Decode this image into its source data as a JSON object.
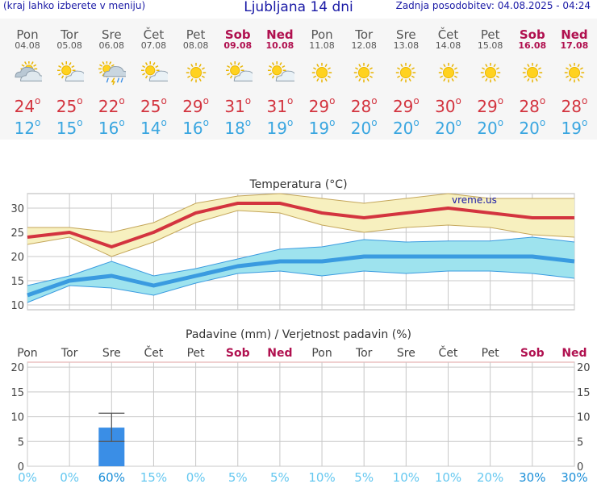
{
  "header": {
    "left": "(kraj lahko izberete v meniju)",
    "title": "Ljubljana 14 dni",
    "right": "Zadnja posodobitev: 04.08.2025 - 04:24"
  },
  "days": [
    {
      "name": "Pon",
      "date": "04.08",
      "weekend": false,
      "icon": "cloudy-sun-icon",
      "tmax": "24",
      "tmin": "12"
    },
    {
      "name": "Tor",
      "date": "05.08",
      "weekend": false,
      "icon": "partly-cloudy-icon",
      "tmax": "25",
      "tmin": "15"
    },
    {
      "name": "Sre",
      "date": "06.08",
      "weekend": false,
      "icon": "thunderstorm-rain-icon",
      "tmax": "22",
      "tmin": "16"
    },
    {
      "name": "Čet",
      "date": "07.08",
      "weekend": false,
      "icon": "partly-cloudy-icon",
      "tmax": "25",
      "tmin": "14"
    },
    {
      "name": "Pet",
      "date": "08.08",
      "weekend": false,
      "icon": "sun-icon",
      "tmax": "29",
      "tmin": "16"
    },
    {
      "name": "Sob",
      "date": "09.08",
      "weekend": true,
      "icon": "partly-cloudy-icon",
      "tmax": "31",
      "tmin": "18"
    },
    {
      "name": "Ned",
      "date": "10.08",
      "weekend": true,
      "icon": "partly-cloudy-icon",
      "tmax": "31",
      "tmin": "19"
    },
    {
      "name": "Pon",
      "date": "11.08",
      "weekend": false,
      "icon": "sun-icon",
      "tmax": "29",
      "tmin": "19"
    },
    {
      "name": "Tor",
      "date": "12.08",
      "weekend": false,
      "icon": "sun-icon",
      "tmax": "28",
      "tmin": "20"
    },
    {
      "name": "Sre",
      "date": "13.08",
      "weekend": false,
      "icon": "sun-icon",
      "tmax": "29",
      "tmin": "20"
    },
    {
      "name": "Čet",
      "date": "14.08",
      "weekend": false,
      "icon": "sun-icon",
      "tmax": "30",
      "tmin": "20"
    },
    {
      "name": "Pet",
      "date": "15.08",
      "weekend": false,
      "icon": "sun-icon",
      "tmax": "29",
      "tmin": "20"
    },
    {
      "name": "Sob",
      "date": "16.08",
      "weekend": true,
      "icon": "sun-icon",
      "tmax": "28",
      "tmin": "20"
    },
    {
      "name": "Ned",
      "date": "17.08",
      "weekend": true,
      "icon": "sun-icon",
      "tmax": "28",
      "tmin": "19"
    }
  ],
  "colors": {
    "max_line": "#d3343f",
    "max_band": "#f7f0bf",
    "max_band_edge": "#c4a65a",
    "min_line": "#3a9be0",
    "min_band": "#9ee3ee",
    "min_band_edge": "#3a9be0",
    "precip_bar": "#3a8ee6",
    "prob_text": "#66c8f0",
    "prob_high": "#1b8fd8",
    "weekend": "#b0104f",
    "grid": "#c8c8c8",
    "axis_red": "#e0a0a0"
  },
  "chart_data": [
    {
      "type": "line",
      "title": "Temperatura (°C)",
      "watermark": "vreme.us",
      "x": [
        "04.08",
        "05.08",
        "06.08",
        "07.08",
        "08.08",
        "09.08",
        "10.08",
        "11.08",
        "12.08",
        "13.08",
        "14.08",
        "15.08",
        "16.08",
        "17.08"
      ],
      "ylim": [
        9,
        33
      ],
      "yticks": [
        10,
        15,
        20,
        25,
        30
      ],
      "series": [
        {
          "key": "tmax",
          "values": [
            24,
            25,
            22,
            25,
            29,
            31,
            31,
            29,
            28,
            29,
            30,
            29,
            28,
            28
          ],
          "band_low": [
            22.5,
            24,
            20,
            23,
            27,
            29.5,
            29,
            26.5,
            25,
            26,
            26.5,
            26,
            24.5,
            24
          ],
          "band_high": [
            26,
            26,
            25,
            27,
            31,
            32.5,
            33,
            32,
            31,
            32,
            33,
            32,
            32,
            32
          ]
        },
        {
          "key": "tmin",
          "values": [
            12,
            15,
            16,
            14,
            16,
            18,
            19,
            19,
            20,
            20,
            20,
            20,
            20,
            19
          ],
          "band_low": [
            10.5,
            14,
            13.5,
            12,
            14.5,
            16.5,
            17,
            16,
            17,
            16.5,
            17,
            17,
            16.5,
            15.5
          ],
          "band_high": [
            14,
            16,
            19,
            16,
            17.5,
            19.5,
            21.5,
            22,
            23.5,
            23,
            23.2,
            23.2,
            24,
            23
          ]
        }
      ],
      "grid": true
    },
    {
      "type": "bar",
      "title": "Padavine (mm) / Verjetnost padavin (%)",
      "categories": [
        "Pon",
        "Tor",
        "Sre",
        "Čet",
        "Pet",
        "Sob",
        "Ned",
        "Pon",
        "Tor",
        "Sre",
        "Čet",
        "Pet",
        "Sob",
        "Ned"
      ],
      "weekend": [
        false,
        false,
        false,
        false,
        false,
        true,
        true,
        false,
        false,
        false,
        false,
        false,
        true,
        true
      ],
      "values": [
        0,
        0,
        7.8,
        0,
        0,
        0,
        0,
        0,
        0,
        0,
        0,
        0,
        0,
        0
      ],
      "error_low": [
        null,
        null,
        5,
        null,
        null,
        null,
        null,
        null,
        null,
        null,
        null,
        null,
        null,
        null
      ],
      "error_high": [
        null,
        null,
        10.7,
        null,
        null,
        null,
        null,
        null,
        null,
        null,
        null,
        null,
        null,
        null
      ],
      "probability": [
        "0%",
        "0%",
        "60%",
        "15%",
        "0%",
        "5%",
        "5%",
        "10%",
        "5%",
        "10%",
        "10%",
        "20%",
        "30%",
        "30%"
      ],
      "ylim": [
        0,
        21
      ],
      "yticks": [
        0,
        5,
        10,
        15,
        20
      ],
      "grid": true
    }
  ]
}
